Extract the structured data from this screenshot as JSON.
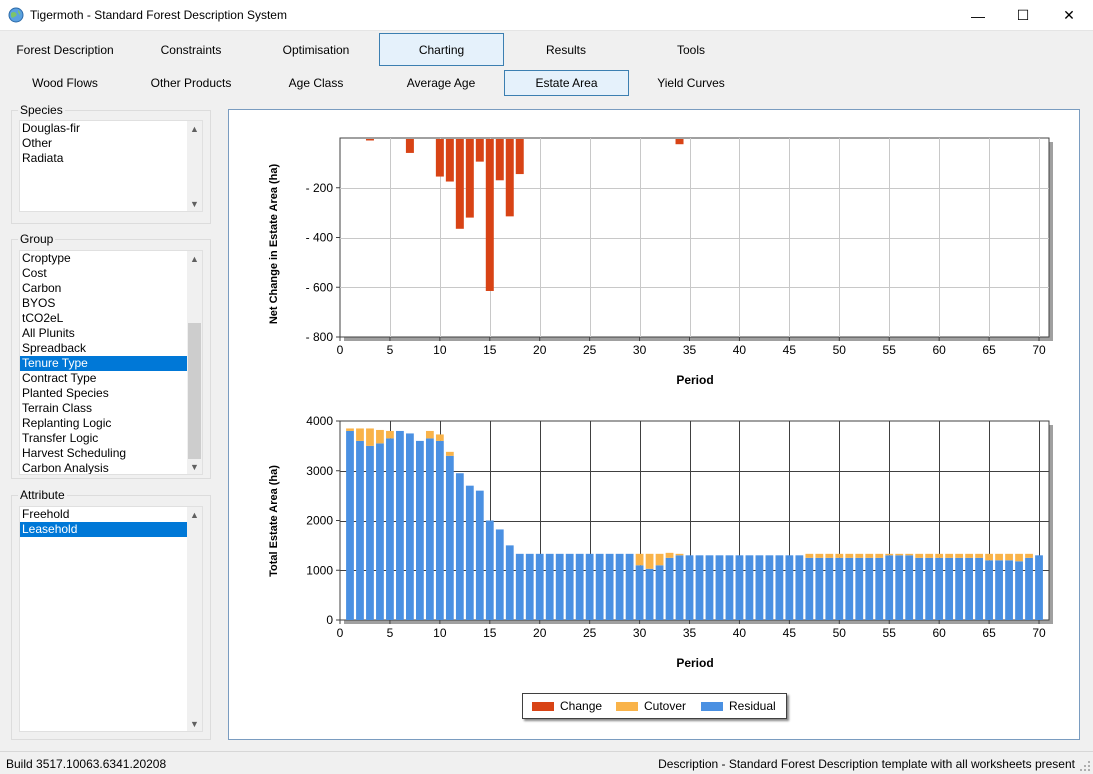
{
  "window": {
    "title": "Tigermoth - Standard Forest Description System",
    "min_glyph": "—",
    "max_glyph": "☐",
    "close_glyph": "✕"
  },
  "tabs_row1": [
    {
      "label": "Forest Description",
      "selected": false
    },
    {
      "label": "Constraints",
      "selected": false
    },
    {
      "label": "Optimisation",
      "selected": false
    },
    {
      "label": "Charting",
      "selected": true
    },
    {
      "label": "Results",
      "selected": false
    },
    {
      "label": "Tools",
      "selected": false
    }
  ],
  "tabs_row2": [
    {
      "label": "Wood Flows",
      "selected": false
    },
    {
      "label": "Other Products",
      "selected": false
    },
    {
      "label": "Age Class",
      "selected": false
    },
    {
      "label": "Average Age",
      "selected": false
    },
    {
      "label": "Estate Area",
      "selected": true
    },
    {
      "label": "Yield Curves",
      "selected": false
    }
  ],
  "species": {
    "label": "Species",
    "items": [
      "Douglas-fir",
      "Other",
      "Radiata"
    ]
  },
  "group": {
    "label": "Group",
    "items": [
      "Croptype",
      "Cost",
      "Carbon",
      "BYOS",
      "tCO2eL",
      "All Plunits",
      "Spreadback",
      "Tenure Type",
      "Contract Type",
      "Planted Species",
      "Terrain Class",
      "Replanting Logic",
      "Transfer Logic",
      "Harvest Scheduling",
      "Carbon Analysis"
    ],
    "selected": "Tenure Type"
  },
  "attribute": {
    "label": "Attribute",
    "items": [
      "Freehold",
      "Leasehold"
    ],
    "selected": "Leasehold"
  },
  "colors": {
    "change": "#d84315",
    "cutover": "#f9b349",
    "residual": "#4a90e2"
  },
  "chart_data": [
    {
      "type": "bar",
      "xlabel": "Period",
      "ylabel": "Net Change in Estate Area (ha)",
      "xlim": [
        0,
        71
      ],
      "ylim": [
        0,
        800
      ],
      "y_inverted": true,
      "x_ticks": [
        0,
        5,
        10,
        15,
        20,
        25,
        30,
        35,
        40,
        45,
        50,
        55,
        60,
        65,
        70
      ],
      "y_ticks": [
        200,
        400,
        600,
        800
      ],
      "y_tick_labels": [
        "- 200",
        "- 400",
        "- 600",
        "- 800"
      ],
      "grid": true,
      "series": [
        {
          "name": "Change",
          "x": [
            3,
            7,
            10,
            11,
            12,
            13,
            14,
            15,
            16,
            17,
            18,
            34
          ],
          "values": [
            10,
            60,
            155,
            175,
            365,
            320,
            95,
            615,
            170,
            315,
            145,
            25
          ]
        }
      ]
    },
    {
      "type": "bar",
      "stacked": true,
      "xlabel": "Period",
      "ylabel": "Total Estate Area (ha)",
      "xlim": [
        0,
        71
      ],
      "ylim": [
        0,
        4000
      ],
      "x_ticks": [
        0,
        5,
        10,
        15,
        20,
        25,
        30,
        35,
        40,
        45,
        50,
        55,
        60,
        65,
        70
      ],
      "y_ticks": [
        0,
        1000,
        2000,
        3000,
        4000
      ],
      "grid": true,
      "legend": "bottom-center",
      "x": [
        1,
        2,
        3,
        4,
        5,
        6,
        7,
        8,
        9,
        10,
        11,
        12,
        13,
        14,
        15,
        16,
        17,
        18,
        19,
        20,
        21,
        22,
        23,
        24,
        25,
        26,
        27,
        28,
        29,
        30,
        31,
        32,
        33,
        34,
        35,
        36,
        37,
        38,
        39,
        40,
        41,
        42,
        43,
        44,
        45,
        46,
        47,
        48,
        49,
        50,
        51,
        52,
        53,
        54,
        55,
        56,
        57,
        58,
        59,
        60,
        61,
        62,
        63,
        64,
        65,
        66,
        67,
        68,
        69,
        70
      ],
      "series": [
        {
          "name": "Residual",
          "values": [
            3800,
            3600,
            3500,
            3550,
            3650,
            3800,
            3750,
            3600,
            3650,
            3600,
            3300,
            2950,
            2700,
            2600,
            2000,
            1820,
            1500,
            1330,
            1330,
            1330,
            1330,
            1330,
            1330,
            1330,
            1330,
            1330,
            1330,
            1330,
            1330,
            1100,
            1030,
            1100,
            1250,
            1300,
            1300,
            1300,
            1300,
            1300,
            1300,
            1300,
            1300,
            1300,
            1300,
            1300,
            1300,
            1300,
            1250,
            1250,
            1250,
            1250,
            1250,
            1250,
            1250,
            1250,
            1300,
            1300,
            1300,
            1250,
            1250,
            1250,
            1250,
            1250,
            1250,
            1250,
            1200,
            1200,
            1200,
            1180,
            1250,
            1300
          ]
        },
        {
          "name": "Cutover",
          "values": [
            50,
            250,
            350,
            270,
            150,
            0,
            0,
            0,
            150,
            130,
            80,
            0,
            0,
            0,
            0,
            0,
            0,
            0,
            0,
            0,
            0,
            0,
            0,
            0,
            0,
            0,
            0,
            0,
            0,
            230,
            300,
            230,
            100,
            30,
            0,
            0,
            0,
            0,
            0,
            0,
            0,
            0,
            0,
            0,
            0,
            0,
            80,
            80,
            80,
            80,
            80,
            80,
            80,
            80,
            30,
            30,
            30,
            80,
            80,
            80,
            80,
            80,
            80,
            80,
            130,
            130,
            130,
            150,
            80,
            0
          ]
        }
      ]
    }
  ],
  "legend": {
    "change_label": "Change",
    "cutover_label": "Cutover",
    "residual_label": "Residual"
  },
  "status": {
    "build": "Build 3517.10063.6341.20208",
    "description": "Description - Standard Forest Description template with all worksheets present"
  }
}
